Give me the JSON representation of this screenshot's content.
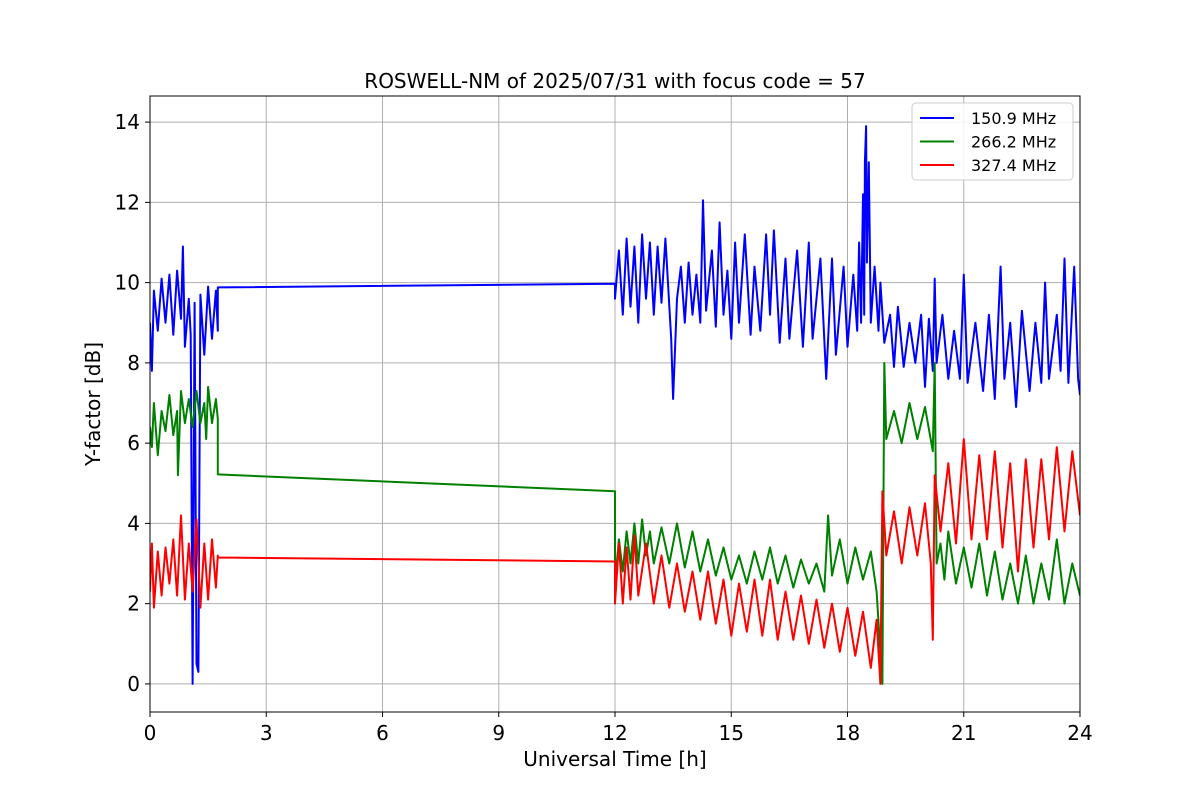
{
  "chart_data": {
    "type": "line",
    "title": "ROSWELL-NM of 2025/07/31 with focus code = 57",
    "xlabel": "Universal Time [h]",
    "ylabel": "Y-factor [dB]",
    "xlim": [
      0,
      24
    ],
    "ylim": [
      -0.7,
      14.65
    ],
    "xticks": [
      "0",
      "3",
      "6",
      "9",
      "12",
      "15",
      "18",
      "21",
      "24"
    ],
    "yticks": [
      "0",
      "2",
      "4",
      "6",
      "8",
      "10",
      "12",
      "14"
    ],
    "grid": true,
    "legend_position": "top-right",
    "series": [
      {
        "name": "150.9 MHz",
        "color": "#0000ff",
        "points": [
          [
            0.0,
            9.0
          ],
          [
            0.05,
            7.8
          ],
          [
            0.1,
            9.8
          ],
          [
            0.2,
            8.8
          ],
          [
            0.3,
            10.1
          ],
          [
            0.4,
            9.0
          ],
          [
            0.5,
            10.2
          ],
          [
            0.6,
            8.7
          ],
          [
            0.7,
            10.3
          ],
          [
            0.8,
            9.1
          ],
          [
            0.85,
            10.9
          ],
          [
            0.9,
            8.4
          ],
          [
            1.0,
            9.6
          ],
          [
            1.05,
            8.7
          ],
          [
            1.1,
            0.0
          ],
          [
            1.15,
            9.5
          ],
          [
            1.2,
            0.5
          ],
          [
            1.25,
            0.3
          ],
          [
            1.3,
            9.7
          ],
          [
            1.4,
            8.2
          ],
          [
            1.5,
            9.9
          ],
          [
            1.6,
            8.6
          ],
          [
            1.7,
            9.8
          ],
          [
            1.75,
            8.8
          ],
          [
            1.75,
            9.88
          ],
          [
            12.0,
            9.97
          ],
          [
            12.0,
            9.6
          ],
          [
            12.1,
            10.8
          ],
          [
            12.2,
            9.2
          ],
          [
            12.3,
            11.1
          ],
          [
            12.4,
            9.4
          ],
          [
            12.5,
            10.9
          ],
          [
            12.6,
            9.0
          ],
          [
            12.7,
            11.2
          ],
          [
            12.8,
            9.6
          ],
          [
            12.9,
            11.0
          ],
          [
            13.0,
            9.2
          ],
          [
            13.1,
            10.9
          ],
          [
            13.2,
            9.5
          ],
          [
            13.3,
            11.1
          ],
          [
            13.45,
            8.6
          ],
          [
            13.5,
            7.1
          ],
          [
            13.6,
            9.6
          ],
          [
            13.7,
            10.4
          ],
          [
            13.8,
            9.0
          ],
          [
            13.9,
            10.5
          ],
          [
            14.0,
            9.2
          ],
          [
            14.1,
            10.2
          ],
          [
            14.2,
            9.0
          ],
          [
            14.27,
            12.05
          ],
          [
            14.35,
            9.3
          ],
          [
            14.5,
            10.8
          ],
          [
            14.6,
            8.9
          ],
          [
            14.7,
            11.5
          ],
          [
            14.8,
            9.2
          ],
          [
            14.9,
            10.3
          ],
          [
            15.0,
            8.6
          ],
          [
            15.1,
            11.0
          ],
          [
            15.2,
            9.0
          ],
          [
            15.35,
            11.2
          ],
          [
            15.5,
            8.7
          ],
          [
            15.6,
            10.4
          ],
          [
            15.75,
            8.8
          ],
          [
            15.9,
            11.2
          ],
          [
            16.0,
            9.2
          ],
          [
            16.1,
            11.3
          ],
          [
            16.25,
            8.5
          ],
          [
            16.4,
            10.6
          ],
          [
            16.5,
            8.6
          ],
          [
            16.7,
            10.8
          ],
          [
            16.85,
            8.4
          ],
          [
            17.0,
            11.0
          ],
          [
            17.1,
            8.6
          ],
          [
            17.3,
            10.6
          ],
          [
            17.45,
            7.6
          ],
          [
            17.6,
            10.6
          ],
          [
            17.7,
            8.2
          ],
          [
            17.9,
            10.4
          ],
          [
            18.0,
            8.4
          ],
          [
            18.15,
            10.2
          ],
          [
            18.25,
            8.8
          ],
          [
            18.3,
            11.0
          ],
          [
            18.35,
            9.0
          ],
          [
            18.4,
            12.2
          ],
          [
            18.43,
            9.2
          ],
          [
            18.45,
            13.0
          ],
          [
            18.48,
            13.9
          ],
          [
            18.5,
            10.5
          ],
          [
            18.55,
            13.0
          ],
          [
            18.6,
            9.0
          ],
          [
            18.7,
            10.4
          ],
          [
            18.8,
            8.8
          ],
          [
            18.85,
            10.0
          ],
          [
            18.95,
            8.5
          ],
          [
            19.1,
            9.2
          ],
          [
            19.2,
            7.9
          ],
          [
            19.3,
            9.4
          ],
          [
            19.45,
            7.9
          ],
          [
            19.6,
            9.0
          ],
          [
            19.75,
            8.0
          ],
          [
            19.9,
            9.2
          ],
          [
            20.0,
            7.4
          ],
          [
            20.1,
            9.1
          ],
          [
            20.2,
            7.8
          ],
          [
            20.25,
            10.1
          ],
          [
            20.3,
            8.0
          ],
          [
            20.45,
            9.2
          ],
          [
            20.6,
            7.6
          ],
          [
            20.75,
            8.8
          ],
          [
            20.9,
            7.6
          ],
          [
            21.0,
            10.2
          ],
          [
            21.1,
            7.5
          ],
          [
            21.3,
            9.0
          ],
          [
            21.5,
            7.3
          ],
          [
            21.65,
            9.2
          ],
          [
            21.8,
            7.1
          ],
          [
            21.95,
            10.4
          ],
          [
            22.05,
            7.6
          ],
          [
            22.2,
            9.0
          ],
          [
            22.35,
            6.9
          ],
          [
            22.5,
            9.3
          ],
          [
            22.7,
            7.3
          ],
          [
            22.85,
            9.0
          ],
          [
            23.0,
            7.5
          ],
          [
            23.1,
            10.0
          ],
          [
            23.2,
            7.6
          ],
          [
            23.4,
            9.2
          ],
          [
            23.5,
            7.8
          ],
          [
            23.6,
            10.6
          ],
          [
            23.7,
            7.5
          ],
          [
            23.85,
            10.4
          ],
          [
            23.95,
            7.6
          ],
          [
            24.0,
            7.2
          ]
        ]
      },
      {
        "name": "266.2 MHz",
        "color": "#008000",
        "points": [
          [
            0.0,
            6.4
          ],
          [
            0.05,
            5.9
          ],
          [
            0.1,
            7.0
          ],
          [
            0.2,
            5.7
          ],
          [
            0.3,
            6.8
          ],
          [
            0.4,
            6.3
          ],
          [
            0.5,
            7.2
          ],
          [
            0.6,
            6.2
          ],
          [
            0.7,
            6.8
          ],
          [
            0.72,
            5.2
          ],
          [
            0.8,
            7.3
          ],
          [
            0.9,
            6.5
          ],
          [
            1.0,
            7.1
          ],
          [
            1.1,
            6.4
          ],
          [
            1.2,
            7.3
          ],
          [
            1.3,
            6.5
          ],
          [
            1.4,
            7.0
          ],
          [
            1.45,
            6.1
          ],
          [
            1.5,
            7.4
          ],
          [
            1.6,
            6.5
          ],
          [
            1.7,
            7.1
          ],
          [
            1.75,
            6.6
          ],
          [
            1.75,
            5.22
          ],
          [
            12.0,
            4.8
          ],
          [
            12.0,
            2.5
          ],
          [
            12.1,
            3.6
          ],
          [
            12.2,
            2.8
          ],
          [
            12.3,
            3.8
          ],
          [
            12.4,
            3.0
          ],
          [
            12.5,
            4.0
          ],
          [
            12.6,
            3.0
          ],
          [
            12.7,
            4.1
          ],
          [
            12.8,
            3.2
          ],
          [
            12.9,
            3.8
          ],
          [
            13.0,
            3.0
          ],
          [
            13.2,
            3.9
          ],
          [
            13.4,
            3.0
          ],
          [
            13.6,
            4.0
          ],
          [
            13.8,
            2.9
          ],
          [
            14.0,
            3.8
          ],
          [
            14.2,
            2.8
          ],
          [
            14.4,
            3.6
          ],
          [
            14.6,
            2.7
          ],
          [
            14.8,
            3.4
          ],
          [
            15.0,
            2.6
          ],
          [
            15.2,
            3.2
          ],
          [
            15.4,
            2.5
          ],
          [
            15.6,
            3.3
          ],
          [
            15.8,
            2.6
          ],
          [
            16.0,
            3.4
          ],
          [
            16.2,
            2.5
          ],
          [
            16.4,
            3.2
          ],
          [
            16.6,
            2.4
          ],
          [
            16.8,
            3.1
          ],
          [
            17.0,
            2.5
          ],
          [
            17.2,
            3.0
          ],
          [
            17.4,
            2.3
          ],
          [
            17.5,
            4.2
          ],
          [
            17.6,
            2.7
          ],
          [
            17.8,
            3.6
          ],
          [
            18.0,
            2.5
          ],
          [
            18.2,
            3.4
          ],
          [
            18.4,
            2.6
          ],
          [
            18.6,
            3.3
          ],
          [
            18.75,
            2.3
          ],
          [
            18.9,
            0.0
          ],
          [
            18.95,
            8.0
          ],
          [
            19.0,
            6.1
          ],
          [
            19.2,
            6.8
          ],
          [
            19.4,
            6.0
          ],
          [
            19.6,
            7.0
          ],
          [
            19.8,
            6.1
          ],
          [
            20.0,
            6.9
          ],
          [
            20.2,
            5.8
          ],
          [
            20.25,
            8.0
          ],
          [
            20.3,
            3.0
          ],
          [
            20.4,
            3.5
          ],
          [
            20.5,
            2.6
          ],
          [
            20.6,
            3.8
          ],
          [
            20.8,
            2.5
          ],
          [
            21.0,
            3.4
          ],
          [
            21.2,
            2.4
          ],
          [
            21.4,
            3.5
          ],
          [
            21.6,
            2.2
          ],
          [
            21.8,
            3.3
          ],
          [
            22.0,
            2.1
          ],
          [
            22.2,
            3.0
          ],
          [
            22.4,
            2.0
          ],
          [
            22.6,
            3.2
          ],
          [
            22.8,
            2.0
          ],
          [
            23.0,
            3.0
          ],
          [
            23.2,
            2.1
          ],
          [
            23.4,
            3.6
          ],
          [
            23.6,
            2.0
          ],
          [
            23.8,
            3.0
          ],
          [
            24.0,
            2.2
          ]
        ]
      },
      {
        "name": "327.4 MHz",
        "color": "#ff0000",
        "points": [
          [
            0.0,
            2.3
          ],
          [
            0.05,
            3.5
          ],
          [
            0.1,
            1.9
          ],
          [
            0.2,
            3.3
          ],
          [
            0.3,
            2.2
          ],
          [
            0.4,
            3.4
          ],
          [
            0.5,
            2.5
          ],
          [
            0.6,
            3.6
          ],
          [
            0.7,
            2.2
          ],
          [
            0.8,
            4.2
          ],
          [
            0.9,
            2.1
          ],
          [
            1.0,
            3.5
          ],
          [
            1.1,
            2.3
          ],
          [
            1.2,
            4.1
          ],
          [
            1.3,
            1.9
          ],
          [
            1.4,
            3.5
          ],
          [
            1.5,
            2.1
          ],
          [
            1.6,
            3.6
          ],
          [
            1.7,
            2.4
          ],
          [
            1.75,
            3.2
          ],
          [
            1.75,
            3.15
          ],
          [
            12.0,
            3.05
          ],
          [
            12.0,
            2.0
          ],
          [
            12.1,
            3.5
          ],
          [
            12.2,
            2.0
          ],
          [
            12.3,
            3.4
          ],
          [
            12.4,
            2.1
          ],
          [
            12.5,
            3.7
          ],
          [
            12.6,
            2.2
          ],
          [
            12.8,
            3.5
          ],
          [
            13.0,
            2.0
          ],
          [
            13.2,
            3.2
          ],
          [
            13.4,
            1.9
          ],
          [
            13.6,
            3.0
          ],
          [
            13.8,
            1.8
          ],
          [
            14.0,
            2.8
          ],
          [
            14.2,
            1.6
          ],
          [
            14.4,
            2.8
          ],
          [
            14.6,
            1.5
          ],
          [
            14.8,
            2.6
          ],
          [
            15.0,
            1.2
          ],
          [
            15.2,
            2.5
          ],
          [
            15.4,
            1.3
          ],
          [
            15.6,
            2.6
          ],
          [
            15.8,
            1.2
          ],
          [
            16.0,
            2.6
          ],
          [
            16.2,
            1.1
          ],
          [
            16.4,
            2.3
          ],
          [
            16.6,
            1.1
          ],
          [
            16.8,
            2.2
          ],
          [
            17.0,
            1.0
          ],
          [
            17.2,
            2.1
          ],
          [
            17.4,
            0.9
          ],
          [
            17.6,
            2.0
          ],
          [
            17.8,
            0.8
          ],
          [
            18.0,
            1.9
          ],
          [
            18.2,
            0.7
          ],
          [
            18.4,
            1.8
          ],
          [
            18.6,
            0.4
          ],
          [
            18.75,
            1.6
          ],
          [
            18.85,
            0.0
          ],
          [
            18.9,
            4.8
          ],
          [
            19.0,
            3.2
          ],
          [
            19.2,
            4.3
          ],
          [
            19.4,
            3.0
          ],
          [
            19.6,
            4.4
          ],
          [
            19.8,
            3.2
          ],
          [
            20.0,
            4.5
          ],
          [
            20.15,
            3.0
          ],
          [
            20.2,
            1.1
          ],
          [
            20.25,
            5.2
          ],
          [
            20.4,
            3.8
          ],
          [
            20.6,
            5.5
          ],
          [
            20.8,
            3.5
          ],
          [
            21.0,
            6.1
          ],
          [
            21.2,
            3.6
          ],
          [
            21.4,
            5.7
          ],
          [
            21.6,
            3.6
          ],
          [
            21.8,
            5.8
          ],
          [
            22.0,
            3.4
          ],
          [
            22.2,
            5.5
          ],
          [
            22.4,
            2.8
          ],
          [
            22.6,
            5.6
          ],
          [
            22.8,
            3.4
          ],
          [
            23.0,
            5.6
          ],
          [
            23.2,
            3.6
          ],
          [
            23.4,
            5.9
          ],
          [
            23.6,
            3.8
          ],
          [
            23.8,
            5.8
          ],
          [
            24.0,
            4.2
          ]
        ]
      }
    ]
  }
}
